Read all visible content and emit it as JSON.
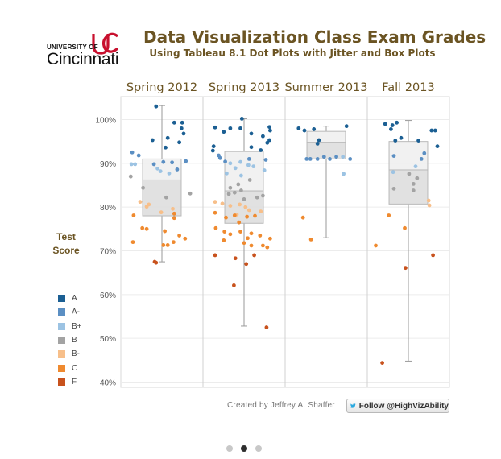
{
  "logo": {
    "university_of": "UNIVERSITY OF",
    "name": "Cincinnati"
  },
  "header": {
    "title": "Data Visualization Class Exam Grades",
    "subtitle": "Using Tableau 8.1 Dot Plots with Jitter and Box Plots"
  },
  "y_axis_title": {
    "line1": "Test",
    "line2": "Score"
  },
  "legend": [
    {
      "label": "A",
      "color": "#1b5f93"
    },
    {
      "label": "A-",
      "color": "#5b8fc3"
    },
    {
      "label": "B+",
      "color": "#9cc3e3"
    },
    {
      "label": "B",
      "color": "#a3a3a3"
    },
    {
      "label": "B-",
      "color": "#f7bf8a"
    },
    {
      "label": "C",
      "color": "#ef8a2f"
    },
    {
      "label": "F",
      "color": "#c8521d"
    }
  ],
  "credit": "Created by Jeffrey A. Shaffer",
  "follow_button": {
    "label": "Follow @HighVizAbility",
    "icon": "twitter-bird-icon"
  },
  "carousel": {
    "count": 3,
    "active_index": 1
  },
  "colors": {
    "text_brown": "#6b5423",
    "uc_red": "#c8102e"
  },
  "chart_data": {
    "type": "scatter",
    "subtype": "jittered dot plot with box plots",
    "title": "Data Visualization Class Exam Grades",
    "subtitle": "Using Tableau 8.1 Dot Plots with Jitter and Box Plots",
    "ylabel": "Test Score",
    "ylim": [
      0.39,
      1.05
    ],
    "yticks": [
      0.4,
      0.5,
      0.6,
      0.7,
      0.8,
      0.9,
      1.0
    ],
    "ytick_labels": [
      "40%",
      "50%",
      "60%",
      "70%",
      "80%",
      "90%",
      "100%"
    ],
    "grid": true,
    "legend_position": "left",
    "grade_colors": {
      "A": "#1b5f93",
      "A-": "#5b8fc3",
      "B+": "#9cc3e3",
      "B": "#a3a3a3",
      "B-": "#f7bf8a",
      "C": "#ef8a2f",
      "F": "#c8521d"
    },
    "panels": [
      {
        "label": "Spring 2012",
        "box": {
          "whisker_low": 0.675,
          "q1": 0.78,
          "median": 0.862,
          "q3": 0.91,
          "whisker_high": 1.032
        },
        "points": [
          {
            "j": 0.42,
            "v": 1.03,
            "g": "A"
          },
          {
            "j": 0.67,
            "v": 0.993,
            "g": "A"
          },
          {
            "j": 0.78,
            "v": 0.993,
            "g": "A"
          },
          {
            "j": 0.77,
            "v": 0.98,
            "g": "A"
          },
          {
            "j": 0.8,
            "v": 0.968,
            "g": "A"
          },
          {
            "j": 0.58,
            "v": 0.958,
            "g": "A"
          },
          {
            "j": 0.37,
            "v": 0.953,
            "g": "A"
          },
          {
            "j": 0.74,
            "v": 0.948,
            "g": "A"
          },
          {
            "j": 0.55,
            "v": 0.936,
            "g": "A"
          },
          {
            "j": 0.52,
            "v": 0.903,
            "g": "A-"
          },
          {
            "j": 0.09,
            "v": 0.925,
            "g": "A-"
          },
          {
            "j": 0.18,
            "v": 0.918,
            "g": "A-"
          },
          {
            "j": 0.83,
            "v": 0.905,
            "g": "A-"
          },
          {
            "j": 0.64,
            "v": 0.902,
            "g": "A-"
          },
          {
            "j": 0.39,
            "v": 0.898,
            "g": "A-"
          },
          {
            "j": 0.71,
            "v": 0.886,
            "g": "A-"
          },
          {
            "j": 0.08,
            "v": 0.898,
            "g": "B+"
          },
          {
            "j": 0.13,
            "v": 0.898,
            "g": "B+"
          },
          {
            "j": 0.44,
            "v": 0.888,
            "g": "B+"
          },
          {
            "j": 0.48,
            "v": 0.882,
            "g": "B+"
          },
          {
            "j": 0.6,
            "v": 0.877,
            "g": "B+"
          },
          {
            "j": 0.07,
            "v": 0.87,
            "g": "B"
          },
          {
            "j": 0.24,
            "v": 0.844,
            "g": "B"
          },
          {
            "j": 0.89,
            "v": 0.831,
            "g": "B"
          },
          {
            "j": 0.56,
            "v": 0.822,
            "g": "B"
          },
          {
            "j": 0.2,
            "v": 0.812,
            "g": "B-"
          },
          {
            "j": 0.32,
            "v": 0.806,
            "g": "B-"
          },
          {
            "j": 0.29,
            "v": 0.801,
            "g": "B-"
          },
          {
            "j": 0.65,
            "v": 0.796,
            "g": "B-"
          },
          {
            "j": 0.49,
            "v": 0.788,
            "g": "B-"
          },
          {
            "j": 0.11,
            "v": 0.781,
            "g": "C"
          },
          {
            "j": 0.67,
            "v": 0.785,
            "g": "C"
          },
          {
            "j": 0.67,
            "v": 0.775,
            "g": "C"
          },
          {
            "j": 0.23,
            "v": 0.752,
            "g": "C"
          },
          {
            "j": 0.29,
            "v": 0.75,
            "g": "C"
          },
          {
            "j": 0.54,
            "v": 0.745,
            "g": "C"
          },
          {
            "j": 0.74,
            "v": 0.735,
            "g": "C"
          },
          {
            "j": 0.82,
            "v": 0.728,
            "g": "C"
          },
          {
            "j": 0.66,
            "v": 0.72,
            "g": "C"
          },
          {
            "j": 0.1,
            "v": 0.72,
            "g": "C"
          },
          {
            "j": 0.52,
            "v": 0.713,
            "g": "C"
          },
          {
            "j": 0.58,
            "v": 0.713,
            "g": "C"
          },
          {
            "j": 0.4,
            "v": 0.675,
            "g": "F"
          },
          {
            "j": 0.42,
            "v": 0.673,
            "g": "F"
          }
        ]
      },
      {
        "label": "Spring 2013",
        "box": {
          "whisker_low": 0.528,
          "q1": 0.763,
          "median": 0.837,
          "q3": 0.927,
          "whisker_high": 1.002
        },
        "points": [
          {
            "j": 0.47,
            "v": 1.002,
            "g": "A"
          },
          {
            "j": 0.1,
            "v": 0.982,
            "g": "A"
          },
          {
            "j": 0.31,
            "v": 0.98,
            "g": "A"
          },
          {
            "j": 0.45,
            "v": 0.98,
            "g": "A"
          },
          {
            "j": 0.85,
            "v": 0.983,
            "g": "A"
          },
          {
            "j": 0.86,
            "v": 0.975,
            "g": "A"
          },
          {
            "j": 0.22,
            "v": 0.972,
            "g": "A"
          },
          {
            "j": 0.6,
            "v": 0.968,
            "g": "A"
          },
          {
            "j": 0.76,
            "v": 0.962,
            "g": "A"
          },
          {
            "j": 0.85,
            "v": 0.953,
            "g": "A"
          },
          {
            "j": 0.82,
            "v": 0.947,
            "g": "A"
          },
          {
            "j": 0.08,
            "v": 0.939,
            "g": "A"
          },
          {
            "j": 0.07,
            "v": 0.929,
            "g": "A"
          },
          {
            "j": 0.6,
            "v": 0.937,
            "g": "A"
          },
          {
            "j": 0.73,
            "v": 0.93,
            "g": "A"
          },
          {
            "j": 0.15,
            "v": 0.918,
            "g": "A-"
          },
          {
            "j": 0.17,
            "v": 0.912,
            "g": "A-"
          },
          {
            "j": 0.57,
            "v": 0.91,
            "g": "A-"
          },
          {
            "j": 0.8,
            "v": 0.908,
            "g": "A-"
          },
          {
            "j": 0.24,
            "v": 0.904,
            "g": "A-"
          },
          {
            "j": 0.45,
            "v": 0.903,
            "g": "B+"
          },
          {
            "j": 0.31,
            "v": 0.9,
            "g": "B+"
          },
          {
            "j": 0.56,
            "v": 0.896,
            "g": "B+"
          },
          {
            "j": 0.63,
            "v": 0.893,
            "g": "B+"
          },
          {
            "j": 0.38,
            "v": 0.889,
            "g": "B+"
          },
          {
            "j": 0.78,
            "v": 0.884,
            "g": "B+"
          },
          {
            "j": 0.26,
            "v": 0.877,
            "g": "B+"
          },
          {
            "j": 0.46,
            "v": 0.872,
            "g": "B+"
          },
          {
            "j": 0.58,
            "v": 0.862,
            "g": "B"
          },
          {
            "j": 0.42,
            "v": 0.852,
            "g": "B"
          },
          {
            "j": 0.31,
            "v": 0.844,
            "g": "B"
          },
          {
            "j": 0.46,
            "v": 0.838,
            "g": "B"
          },
          {
            "j": 0.29,
            "v": 0.83,
            "g": "B"
          },
          {
            "j": 0.37,
            "v": 0.833,
            "g": "B"
          },
          {
            "j": 0.76,
            "v": 0.826,
            "g": "B"
          },
          {
            "j": 0.68,
            "v": 0.822,
            "g": "B"
          },
          {
            "j": 0.5,
            "v": 0.818,
            "g": "B"
          },
          {
            "j": 0.1,
            "v": 0.812,
            "g": "B-"
          },
          {
            "j": 0.2,
            "v": 0.808,
            "g": "B-"
          },
          {
            "j": 0.31,
            "v": 0.803,
            "g": "B-"
          },
          {
            "j": 0.44,
            "v": 0.806,
            "g": "B-"
          },
          {
            "j": 0.52,
            "v": 0.8,
            "g": "B-"
          },
          {
            "j": 0.57,
            "v": 0.793,
            "g": "B-"
          },
          {
            "j": 0.73,
            "v": 0.79,
            "g": "B-"
          },
          {
            "j": 0.4,
            "v": 0.783,
            "g": "B-"
          },
          {
            "j": 0.1,
            "v": 0.787,
            "g": "C"
          },
          {
            "j": 0.25,
            "v": 0.776,
            "g": "C"
          },
          {
            "j": 0.37,
            "v": 0.781,
            "g": "C"
          },
          {
            "j": 0.54,
            "v": 0.778,
            "g": "C"
          },
          {
            "j": 0.65,
            "v": 0.78,
            "g": "C"
          },
          {
            "j": 0.43,
            "v": 0.765,
            "g": "C"
          },
          {
            "j": 0.11,
            "v": 0.752,
            "g": "C"
          },
          {
            "j": 0.23,
            "v": 0.744,
            "g": "C"
          },
          {
            "j": 0.31,
            "v": 0.738,
            "g": "C"
          },
          {
            "j": 0.45,
            "v": 0.744,
            "g": "C"
          },
          {
            "j": 0.55,
            "v": 0.729,
            "g": "C"
          },
          {
            "j": 0.6,
            "v": 0.74,
            "g": "C"
          },
          {
            "j": 0.72,
            "v": 0.735,
            "g": "C"
          },
          {
            "j": 0.86,
            "v": 0.728,
            "g": "C"
          },
          {
            "j": 0.22,
            "v": 0.724,
            "g": "C"
          },
          {
            "j": 0.5,
            "v": 0.718,
            "g": "C"
          },
          {
            "j": 0.6,
            "v": 0.712,
            "g": "C"
          },
          {
            "j": 0.76,
            "v": 0.712,
            "g": "C"
          },
          {
            "j": 0.82,
            "v": 0.708,
            "g": "C"
          },
          {
            "j": 0.1,
            "v": 0.69,
            "g": "F"
          },
          {
            "j": 0.38,
            "v": 0.683,
            "g": "F"
          },
          {
            "j": 0.64,
            "v": 0.69,
            "g": "F"
          },
          {
            "j": 0.53,
            "v": 0.67,
            "g": "F"
          },
          {
            "j": 0.36,
            "v": 0.621,
            "g": "F"
          },
          {
            "j": 0.81,
            "v": 0.525,
            "g": "F"
          }
        ]
      },
      {
        "label": "Summer 2013",
        "box": {
          "whisker_low": 0.73,
          "q1": 0.91,
          "median": 0.948,
          "q3": 0.973,
          "whisker_high": 0.985
        },
        "points": [
          {
            "j": 0.12,
            "v": 0.98,
            "g": "A"
          },
          {
            "j": 0.2,
            "v": 0.975,
            "g": "A"
          },
          {
            "j": 0.33,
            "v": 0.978,
            "g": "A"
          },
          {
            "j": 0.78,
            "v": 0.985,
            "g": "A"
          },
          {
            "j": 0.4,
            "v": 0.953,
            "g": "A"
          },
          {
            "j": 0.38,
            "v": 0.945,
            "g": "A"
          },
          {
            "j": 0.23,
            "v": 0.91,
            "g": "A-"
          },
          {
            "j": 0.28,
            "v": 0.91,
            "g": "A-"
          },
          {
            "j": 0.38,
            "v": 0.91,
            "g": "A-"
          },
          {
            "j": 0.47,
            "v": 0.915,
            "g": "A-"
          },
          {
            "j": 0.55,
            "v": 0.91,
            "g": "A-"
          },
          {
            "j": 0.64,
            "v": 0.915,
            "g": "A-"
          },
          {
            "j": 0.83,
            "v": 0.91,
            "g": "A-"
          },
          {
            "j": 0.73,
            "v": 0.915,
            "g": "B+"
          },
          {
            "j": 0.74,
            "v": 0.876,
            "g": "B+"
          },
          {
            "j": 0.18,
            "v": 0.776,
            "g": "C"
          },
          {
            "j": 0.29,
            "v": 0.726,
            "g": "C"
          }
        ]
      },
      {
        "label": "Fall 2013",
        "box": {
          "whisker_low": 0.448,
          "q1": 0.807,
          "median": 0.885,
          "q3": 0.95,
          "whisker_high": 0.998
        },
        "points": [
          {
            "j": 0.18,
            "v": 0.99,
            "g": "A"
          },
          {
            "j": 0.28,
            "v": 0.987,
            "g": "A"
          },
          {
            "j": 0.34,
            "v": 0.993,
            "g": "A"
          },
          {
            "j": 0.26,
            "v": 0.978,
            "g": "A"
          },
          {
            "j": 0.82,
            "v": 0.975,
            "g": "A"
          },
          {
            "j": 0.87,
            "v": 0.975,
            "g": "A"
          },
          {
            "j": 0.4,
            "v": 0.958,
            "g": "A"
          },
          {
            "j": 0.32,
            "v": 0.952,
            "g": "A"
          },
          {
            "j": 0.64,
            "v": 0.952,
            "g": "A"
          },
          {
            "j": 0.9,
            "v": 0.939,
            "g": "A"
          },
          {
            "j": 0.72,
            "v": 0.923,
            "g": "A-"
          },
          {
            "j": 0.3,
            "v": 0.917,
            "g": "A-"
          },
          {
            "j": 0.68,
            "v": 0.91,
            "g": "A-"
          },
          {
            "j": 0.29,
            "v": 0.88,
            "g": "B+"
          },
          {
            "j": 0.6,
            "v": 0.893,
            "g": "B+"
          },
          {
            "j": 0.51,
            "v": 0.876,
            "g": "B"
          },
          {
            "j": 0.62,
            "v": 0.866,
            "g": "B"
          },
          {
            "j": 0.3,
            "v": 0.842,
            "g": "B"
          },
          {
            "j": 0.57,
            "v": 0.853,
            "g": "B"
          },
          {
            "j": 0.57,
            "v": 0.838,
            "g": "B"
          },
          {
            "j": 0.78,
            "v": 0.815,
            "g": "B-"
          },
          {
            "j": 0.79,
            "v": 0.804,
            "g": "B-"
          },
          {
            "j": 0.23,
            "v": 0.781,
            "g": "C"
          },
          {
            "j": 0.05,
            "v": 0.712,
            "g": "C"
          },
          {
            "j": 0.45,
            "v": 0.752,
            "g": "C"
          },
          {
            "j": 0.46,
            "v": 0.661,
            "g": "F"
          },
          {
            "j": 0.84,
            "v": 0.69,
            "g": "F"
          },
          {
            "j": 0.14,
            "v": 0.444,
            "g": "F"
          }
        ]
      }
    ]
  }
}
